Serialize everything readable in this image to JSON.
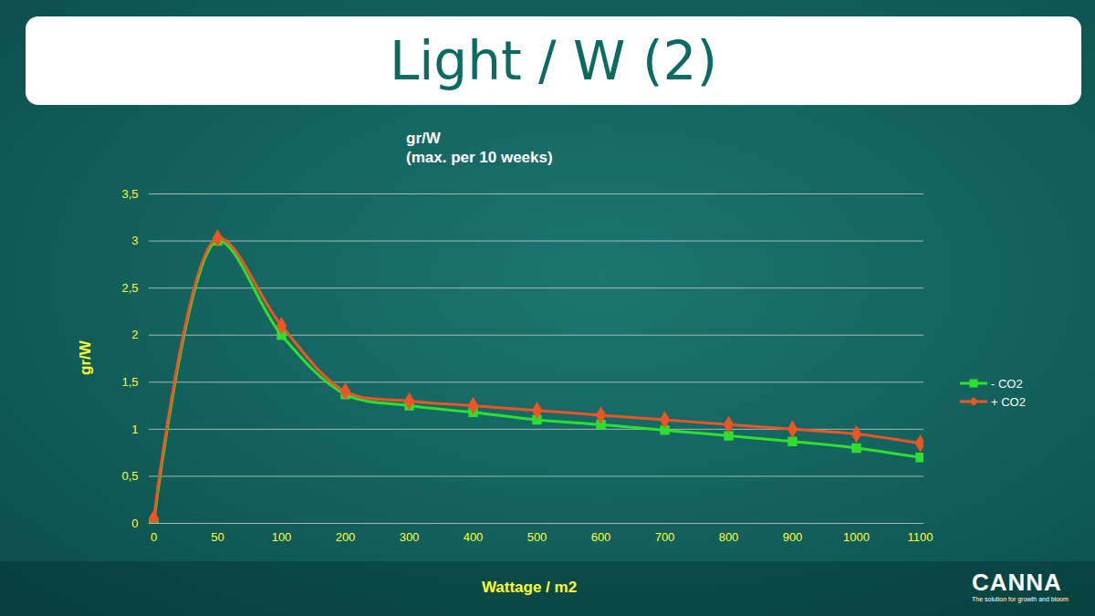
{
  "slide": {
    "title": "Light / W (2)",
    "logo": "CANNA",
    "tagline": "The solution for growth and bloom"
  },
  "chart_data": {
    "type": "line",
    "title": "gr/W",
    "subtitle": "(max. per 10 weeks)",
    "x_label": "Wattage / m2",
    "y_label": "gr/W",
    "categories": [
      "0",
      "50",
      "100",
      "200",
      "300",
      "400",
      "500",
      "600",
      "700",
      "800",
      "900",
      "1000",
      "1100"
    ],
    "series": [
      {
        "name": "- CO2",
        "color": "#2ee02e",
        "marker": "square",
        "line_style": "solid",
        "values": [
          0,
          3.0,
          2.0,
          1.37,
          1.25,
          1.18,
          1.1,
          1.05,
          0.99,
          0.93,
          0.87,
          0.8,
          0.7
        ]
      },
      {
        "name": "+ CO2",
        "color": "#ee5522",
        "marker": "diamond",
        "line_style": "solid",
        "values": [
          0.05,
          3.03,
          2.1,
          1.4,
          1.3,
          1.25,
          1.2,
          1.15,
          1.1,
          1.05,
          1.0,
          0.95,
          0.85
        ]
      }
    ],
    "ylim": [
      0,
      3.5
    ],
    "yticks": [
      0,
      {
        "value": 0.5,
        "label": "0,5"
      },
      1,
      {
        "value": 1.5,
        "label": "1,5"
      },
      2,
      {
        "value": 2.5,
        "label": "2,5"
      },
      3,
      {
        "value": 3.5,
        "label": "3,5"
      }
    ],
    "grid": true,
    "legend": "right"
  }
}
